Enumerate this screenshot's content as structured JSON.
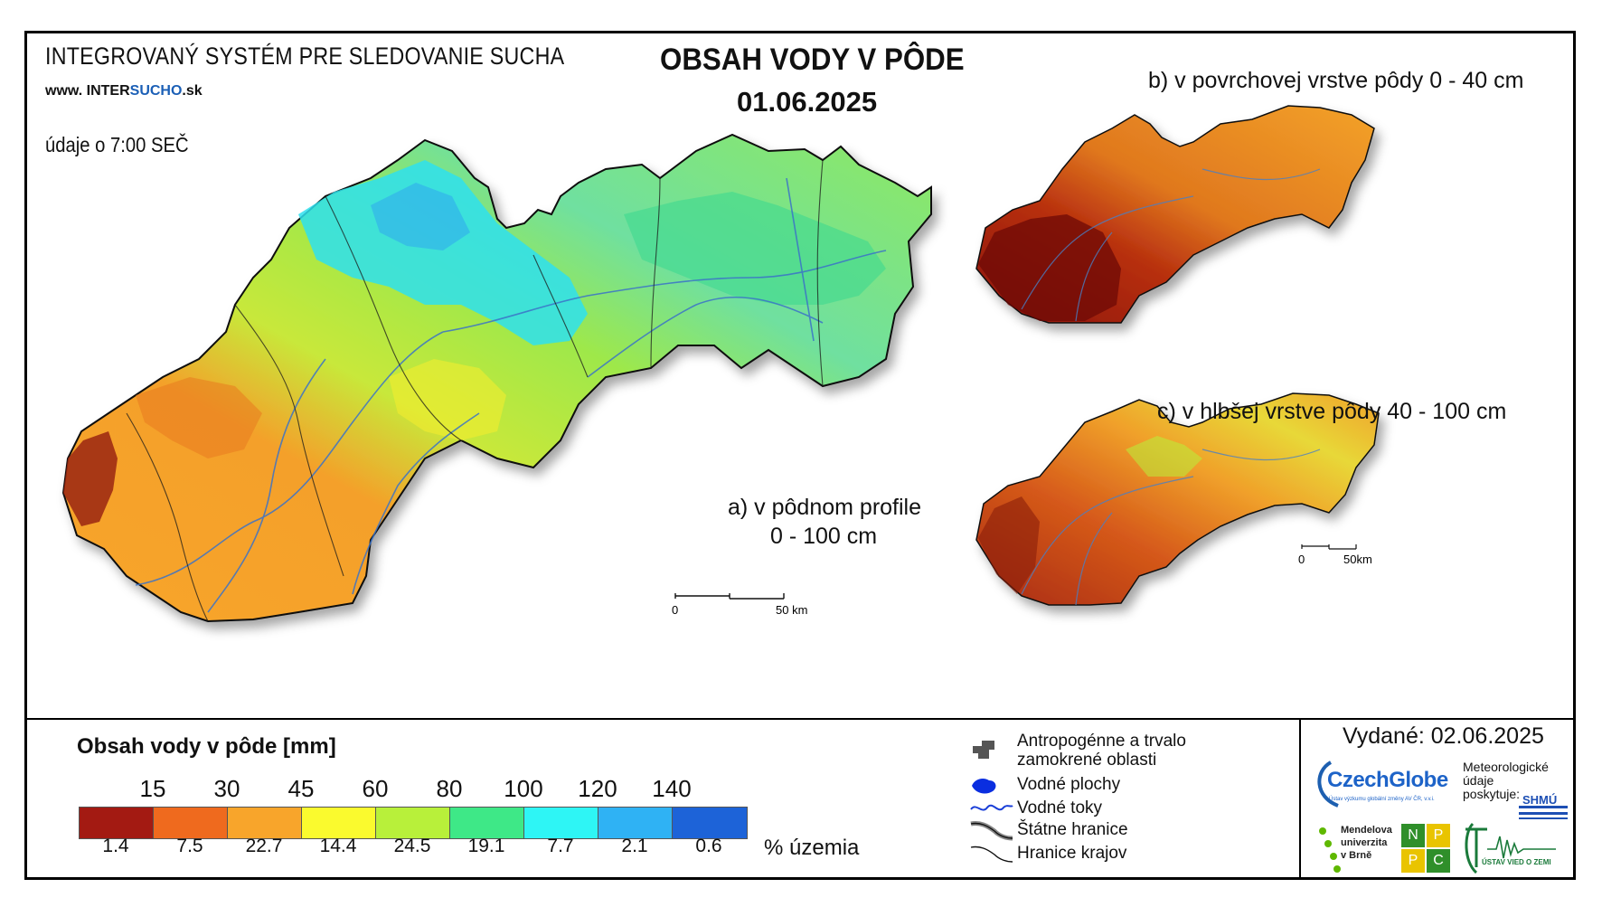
{
  "header": {
    "system_title": "INTEGROVANÝ SYSTÉM PRE SLEDOVANIE SUCHA",
    "website_prefix": "www. ",
    "website_inter": "INTER",
    "website_sucho": "SUCHO",
    "website_suffix": ".sk",
    "data_time": "údaje o 7:00 SEČ",
    "main_title": "OBSAH VODY V PÔDE",
    "date": "01.06.2025"
  },
  "maps": {
    "main_label_line1": "a) v pôdnom profile",
    "main_label_line2": "0 - 100 cm",
    "top_label": "b) v povrchovej vrstve pôdy 0 - 40 cm",
    "bottom_label": "c) v hlbšej vrstve pôdy 40 - 100 cm",
    "main_scale_start": "0",
    "main_scale_end": "50 km",
    "small_scale_start": "0",
    "small_scale_end": "50km"
  },
  "legend": {
    "title": "Obsah vody v pôde  [mm]",
    "thresholds": [
      "15",
      "30",
      "45",
      "60",
      "80",
      "100",
      "120",
      "140"
    ],
    "colors": [
      "#a31a12",
      "#ef6a1e",
      "#f8a52b",
      "#fafa2e",
      "#b8f03a",
      "#3ee887",
      "#2ef5f5",
      "#2fb2f4",
      "#1d63d8"
    ],
    "percent_values": [
      "1.4",
      "7.5",
      "22.7",
      "14.4",
      "24.5",
      "19.1",
      "7.7",
      "2.1",
      "0.6"
    ],
    "percent_unit": "% územia"
  },
  "symbols": {
    "anthropogenic_line1": "Antropogénne a trvalo",
    "anthropogenic_line2": "zamokrené oblasti",
    "water_bodies": "Vodné plochy",
    "water_streams": "Vodné toky",
    "state_border": "Štátne hranice",
    "region_border": "Hranice krajov"
  },
  "footer": {
    "issued": "Vydané: 02.06.2025",
    "logo_czechglobe": "CzechGlobe",
    "czechglobe_sub": "Ústav výzkumu globální změny AV ČR, v.v.i.",
    "met_data_line1": "Meteorologické",
    "met_data_line2": "údaje",
    "met_data_line3": "poskytuje:",
    "logo_shmu": "SHMÚ",
    "mendel_line1": "Mendelova",
    "mendel_line2": "univerzita",
    "mendel_line3": "v Brně",
    "nppc_letters": [
      "N",
      "P",
      "P",
      "C"
    ],
    "ustav_vied": "ÚSTAV VIED O ZEMI"
  }
}
